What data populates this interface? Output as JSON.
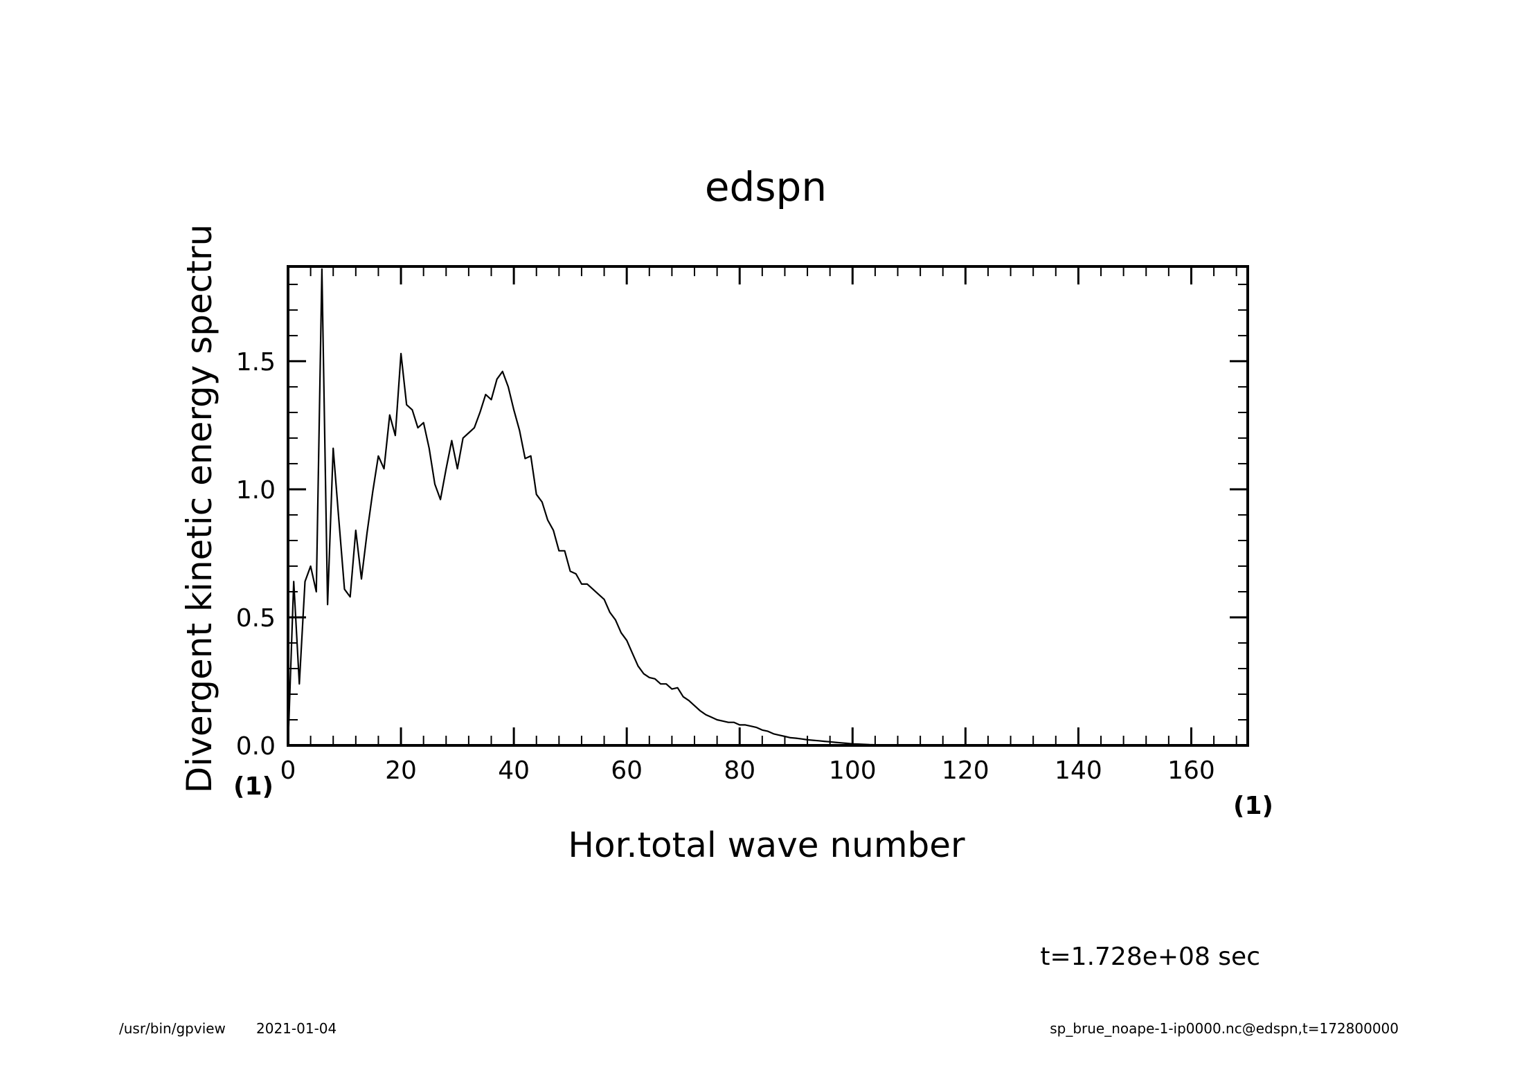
{
  "footer": {
    "program": "/usr/bin/gpview",
    "date": "2021-01-04",
    "source": "sp_brue_noape-1-ip0000.nc@edspn,t=172800000"
  },
  "chart_data": {
    "type": "line",
    "title": "edspn",
    "xlabel": "Hor.total wave number",
    "ylabel": "Divergent kinetic energy spectru",
    "x_unit": "(1)",
    "y_unit": "(1)",
    "annotation": "t=1.728e+08 sec",
    "xlim": [
      0,
      170
    ],
    "ylim": [
      0,
      1.87
    ],
    "x_ticks": [
      0,
      20,
      40,
      60,
      80,
      100,
      120,
      140,
      160
    ],
    "x_tick_labels": [
      "0",
      "20",
      "40",
      "60",
      "80",
      "100",
      "120",
      "140",
      "160"
    ],
    "y_ticks": [
      0,
      0.5,
      1.0,
      1.5
    ],
    "y_tick_labels": [
      "0.0",
      "0.5",
      "1.0",
      "1.5"
    ],
    "grid": false,
    "color": "#000000",
    "x": [
      0,
      1,
      2,
      3,
      4,
      5,
      6,
      7,
      8,
      9,
      10,
      11,
      12,
      13,
      14,
      15,
      16,
      17,
      18,
      19,
      20,
      21,
      22,
      23,
      24,
      25,
      26,
      27,
      28,
      29,
      30,
      31,
      32,
      33,
      34,
      35,
      36,
      37,
      38,
      39,
      40,
      41,
      42,
      43,
      44,
      45,
      46,
      47,
      48,
      49,
      50,
      51,
      52,
      53,
      54,
      55,
      56,
      57,
      58,
      59,
      60,
      61,
      62,
      63,
      64,
      65,
      66,
      67,
      68,
      69,
      70,
      71,
      72,
      73,
      74,
      75,
      76,
      77,
      78,
      79,
      80,
      81,
      82,
      83,
      84,
      85,
      86,
      87,
      88,
      89,
      90,
      91,
      92,
      93,
      94,
      95,
      96,
      97,
      98,
      99,
      100,
      101,
      102,
      103,
      104,
      105,
      106,
      107,
      108,
      109,
      110,
      111,
      112,
      113,
      114,
      115,
      116,
      117,
      118,
      119,
      120,
      121,
      122,
      123,
      124,
      125,
      126,
      127,
      128,
      129,
      130,
      131,
      132,
      133,
      134,
      135,
      136,
      137,
      138,
      139,
      140,
      141,
      142,
      143,
      144,
      145,
      146,
      147,
      148,
      149,
      150,
      151,
      152,
      153,
      154,
      155,
      156,
      157,
      158,
      159,
      160,
      161,
      162,
      163,
      164,
      165,
      166,
      167,
      168,
      169,
      170
    ],
    "y": [
      0.0,
      0.64,
      0.24,
      0.64,
      0.7,
      0.6,
      1.86,
      0.55,
      1.16,
      0.88,
      0.61,
      0.58,
      0.84,
      0.65,
      0.83,
      0.99,
      1.13,
      1.08,
      1.29,
      1.21,
      1.53,
      1.33,
      1.31,
      1.24,
      1.26,
      1.16,
      1.02,
      0.96,
      1.08,
      1.19,
      1.08,
      1.2,
      1.22,
      1.24,
      1.3,
      1.37,
      1.35,
      1.43,
      1.46,
      1.4,
      1.31,
      1.23,
      1.12,
      1.13,
      0.98,
      0.95,
      0.88,
      0.84,
      0.76,
      0.76,
      0.68,
      0.67,
      0.63,
      0.63,
      0.61,
      0.59,
      0.57,
      0.52,
      0.49,
      0.44,
      0.41,
      0.36,
      0.31,
      0.28,
      0.265,
      0.26,
      0.24,
      0.24,
      0.22,
      0.225,
      0.19,
      0.175,
      0.155,
      0.135,
      0.12,
      0.11,
      0.1,
      0.095,
      0.09,
      0.09,
      0.08,
      0.08,
      0.075,
      0.07,
      0.06,
      0.055,
      0.045,
      0.04,
      0.035,
      0.03,
      0.028,
      0.025,
      0.022,
      0.02,
      0.018,
      0.016,
      0.014,
      0.012,
      0.01,
      0.008,
      0.006,
      0.005,
      0.004,
      0.003,
      0.0025,
      0.002,
      0.0015,
      0.001,
      0.001,
      0.0008,
      0.0006,
      0.0005,
      0.0004,
      0.0003,
      0.0003,
      0.0002,
      0.0002,
      0.0001,
      0.0001,
      0.0001,
      0.0001,
      0.0001,
      0.0,
      0.0,
      0.0,
      0.0,
      0.0,
      0.0,
      0.0,
      0.0,
      0.0,
      0.0,
      0.0,
      0.0,
      0.0,
      0.0,
      0.0,
      0.0,
      0.0,
      0.0,
      0.0,
      0.0,
      0.0,
      0.0,
      0.0,
      0.0,
      0.0,
      0.0,
      0.0,
      0.0,
      0.0,
      0.0,
      0.0,
      0.0,
      0.0,
      0.0,
      0.0,
      0.0,
      0.0,
      0.0,
      0.0,
      0.0,
      0.0,
      0.0,
      0.0,
      0.0,
      0.0,
      0.0,
      0.0,
      0.0,
      0.0
    ]
  }
}
